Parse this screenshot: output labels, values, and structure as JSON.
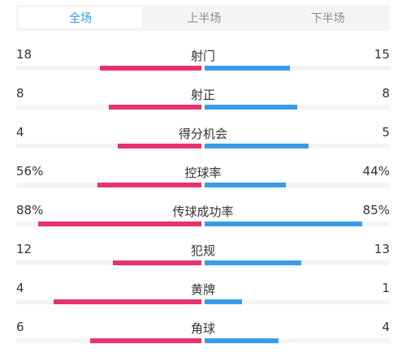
{
  "tabs": [
    {
      "label": "全场",
      "active": true
    },
    {
      "label": "上半场",
      "active": false
    },
    {
      "label": "下半场",
      "active": false
    }
  ],
  "colors": {
    "home_bar": "#e8326e",
    "away_bar": "#3a9be8",
    "track": "#f4f4f4",
    "active_tab_text": "#2f96e6"
  },
  "stats": [
    {
      "label": "射门",
      "home": "18",
      "away": "15",
      "home_fill": 0.55,
      "away_fill": 0.46
    },
    {
      "label": "射正",
      "home": "8",
      "away": "8",
      "home_fill": 0.5,
      "away_fill": 0.5
    },
    {
      "label": "得分机会",
      "home": "4",
      "away": "5",
      "home_fill": 0.45,
      "away_fill": 0.56
    },
    {
      "label": "控球率",
      "home": "56%",
      "away": "44%",
      "home_fill": 0.56,
      "away_fill": 0.44
    },
    {
      "label": "传球成功率",
      "home": "88%",
      "away": "85%",
      "home_fill": 0.88,
      "away_fill": 0.85
    },
    {
      "label": "犯规",
      "home": "12",
      "away": "13",
      "home_fill": 0.48,
      "away_fill": 0.52
    },
    {
      "label": "黄牌",
      "home": "4",
      "away": "1",
      "home_fill": 0.8,
      "away_fill": 0.2
    },
    {
      "label": "角球",
      "home": "6",
      "away": "4",
      "home_fill": 0.6,
      "away_fill": 0.4
    }
  ]
}
